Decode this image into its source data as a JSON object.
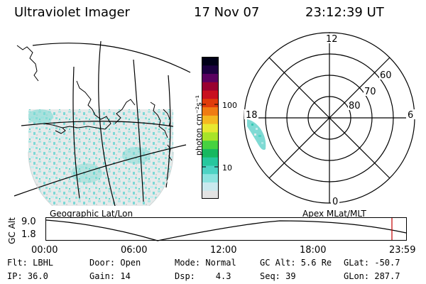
{
  "header": {
    "instrument": "Ultraviolet Imager",
    "date": "17 Nov 07",
    "time": "23:12:39 UT"
  },
  "colorbar": {
    "unit_label": "photon cm⁻²s⁻¹",
    "tick_100": "100",
    "tick_10": "10",
    "colors": [
      "#e3e3e3",
      "#c9e9ee",
      "#8ce3df",
      "#4ed3c4",
      "#27c79e",
      "#17b860",
      "#46d240",
      "#a8e428",
      "#e8e830",
      "#f4b820",
      "#f07c12",
      "#e03c0a",
      "#c81020",
      "#990030",
      "#5a0060",
      "#1c0040",
      "#000018"
    ]
  },
  "geo_map": {
    "label": "Geographic Lat/Lon"
  },
  "polar_plot": {
    "label": "Apex MLat/MLT",
    "mlt_labels": {
      "top": "12",
      "left": "18",
      "right": "6",
      "bottom": "0"
    },
    "lat_labels": [
      "60",
      "70",
      "80"
    ]
  },
  "altitude_panel": {
    "axis_label": "GC Alt",
    "y_ticks": [
      "9.0",
      "1.8"
    ],
    "x_ticks": [
      "00:00",
      "06:00",
      "12:00",
      "18:00",
      "23:59"
    ],
    "marker_color": "#c00000"
  },
  "status": {
    "flt": "Flt: LBHL",
    "ip": "IP: 36.0",
    "door": "Door: Open",
    "gain": "Gain: 14",
    "mode": "Mode: Normal",
    "dsp": "Dsp:    4.3",
    "gc_alt": "GC Alt: 5.6 Re",
    "seq": "Seq: 39",
    "glat": "GLat: -50.7",
    "glon": "GLon: 287.7"
  }
}
